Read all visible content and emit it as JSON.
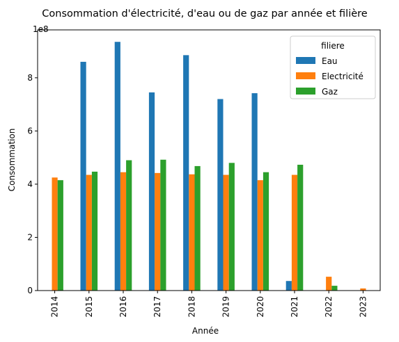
{
  "chart_data": {
    "type": "bar",
    "title": "Consommation d'électricité, d'eau ou de gaz par année et filière",
    "xlabel": "Année",
    "ylabel": "Consommation",
    "y_multiplier_label": "1e8",
    "y_multiplier": 100000000,
    "ylim": [
      0,
      9.8
    ],
    "yticks": [
      0,
      2,
      4,
      6,
      8
    ],
    "grid": false,
    "legend": {
      "title": "filiere",
      "placement": "top-right"
    },
    "categories": [
      "2014",
      "2015",
      "2016",
      "2017",
      "2018",
      "2019",
      "2020",
      "2021",
      "2022",
      "2023"
    ],
    "series": [
      {
        "name": "Eau",
        "color": "#1f77b4",
        "values": [
          0,
          8.6,
          9.35,
          7.45,
          8.85,
          7.2,
          7.42,
          0.36,
          0,
          0
        ]
      },
      {
        "name": "Electricité",
        "color": "#ff7f0e",
        "values": [
          4.25,
          4.35,
          4.45,
          4.42,
          4.37,
          4.35,
          4.15,
          4.35,
          0.52,
          0.08
        ]
      },
      {
        "name": "Gaz",
        "color": "#2ca02c",
        "values": [
          4.15,
          4.47,
          4.9,
          4.92,
          4.68,
          4.8,
          4.45,
          4.73,
          0.18,
          0
        ]
      }
    ]
  }
}
